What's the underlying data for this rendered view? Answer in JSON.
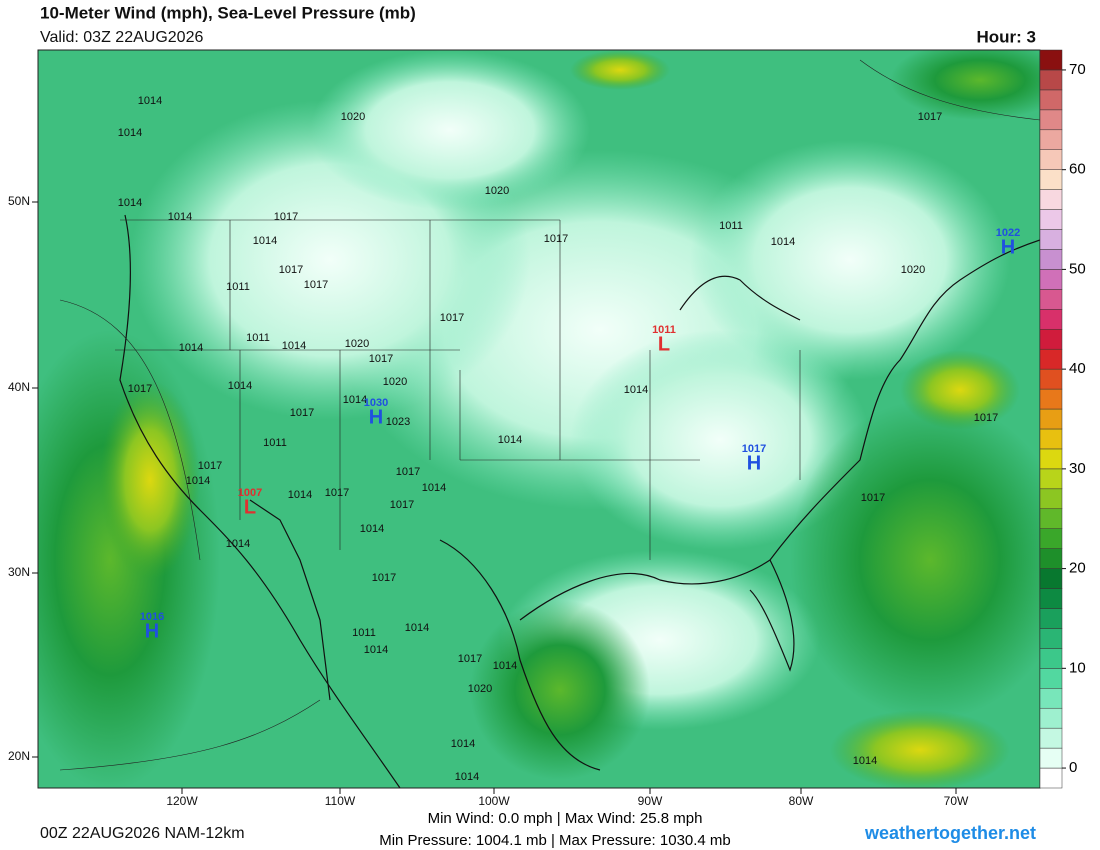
{
  "header": {
    "title": "10-Meter Wind (mph), Sea-Level Pressure (mb)",
    "valid": "Valid: 03Z 22AUG2026",
    "hour": "Hour: 3"
  },
  "colorbar": {
    "lim": [
      -2,
      72
    ],
    "ticks": [
      0,
      10,
      20,
      30,
      40,
      50,
      60,
      70
    ],
    "colors": [
      "#ffffff",
      "#e6fff4",
      "#c4f8e2",
      "#9ef0cf",
      "#78e6ba",
      "#52d8a0",
      "#3cc88a",
      "#2ab574",
      "#1aa05c",
      "#0d8a42",
      "#08782f",
      "#1e8f2a",
      "#3aa72a",
      "#60b82a",
      "#8cc622",
      "#b8d41a",
      "#dcd810",
      "#e8c010",
      "#e89e14",
      "#e8781a",
      "#e05020",
      "#d82828",
      "#d01c3c",
      "#d8306a",
      "#d85890",
      "#d070b8",
      "#c890d0",
      "#d8b0e0",
      "#ecc8e8",
      "#f8d8e0",
      "#fbe0c8",
      "#f6c8b8",
      "#eca8a0",
      "#e08888",
      "#d06868",
      "#b84848",
      "#8a1010"
    ]
  },
  "axes": {
    "lat": [
      "50N",
      "40N",
      "30N",
      "20N"
    ],
    "lon": [
      "120W",
      "110W",
      "100W",
      "90W",
      "80W",
      "70W"
    ]
  },
  "contour_labels": [
    1014,
    1014,
    1020,
    1020,
    1017,
    1014,
    1014,
    1017,
    1014,
    1017,
    1011,
    1014,
    1020,
    1017,
    1011,
    1017,
    1017,
    1011,
    1014,
    1014,
    1020,
    1017,
    1020,
    1017,
    1014,
    1014,
    1017,
    1023,
    1014,
    1017,
    1014,
    1011,
    1017,
    1014,
    1017,
    1014,
    1014,
    1017,
    1017,
    1017,
    1014,
    1014,
    1017,
    1014,
    1011,
    1014,
    1017,
    1014,
    1020,
    1014,
    1014,
    1014
  ],
  "centers": [
    {
      "letter": "L",
      "value": 1011
    },
    {
      "letter": "H",
      "value": 1030
    },
    {
      "letter": "H",
      "value": 1017
    },
    {
      "letter": "L",
      "value": 1007
    },
    {
      "letter": "H",
      "value": 1016
    },
    {
      "letter": "H",
      "value": 1022
    }
  ],
  "footer": {
    "run": "00Z 22AUG2026 NAM-12km",
    "wind": "Min Wind:  0.0 mph | Max Wind: 25.8 mph",
    "pressure": "Min Pressure: 1004.1 mb | Max Pressure: 1030.4 mb",
    "site": "weathertogether.net"
  }
}
